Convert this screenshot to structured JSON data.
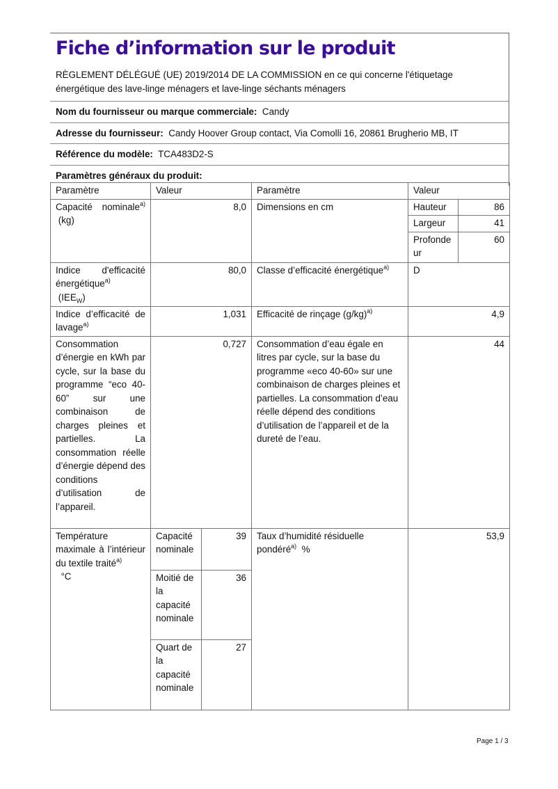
{
  "title": "Fiche d’information sur le produit",
  "regulation": "RÈGLEMENT DÉLÉGUÉ (UE) 2019/2014 DE LA COMMISSION en ce qui concerne l'étiquetage énergétique des lave-linge ménagers et lave-linge séchants ménagers",
  "supplier": {
    "label": "Nom du fournisseur ou marque commerciale:",
    "value": "Candy"
  },
  "address": {
    "label": "Adresse du fournisseur:",
    "value": "Candy Hoover Group contact, Via Comolli 16, 20861 Brugherio MB, IT"
  },
  "model": {
    "label": "Référence du modèle:",
    "value": "TCA483D2-S"
  },
  "general": "Paramètres généraux du produit:",
  "table": {
    "h_param": "Paramètre",
    "h_value": "Valeur",
    "h_param2": "Paramètre",
    "h_value2": "Valeur",
    "sup": "a)",
    "capacity": {
      "label": "Capacité nominale",
      "unit": "(kg)",
      "value": "8,0"
    },
    "dimensions": {
      "label": "Dimensions en cm",
      "height_label": "Hauteur",
      "height": "86",
      "width_label": "Largeur",
      "width": "41",
      "depth_label": "Profondeur",
      "depth": "60"
    },
    "eei": {
      "label": "Indice d'efficacité énergétique",
      "abbr": "(IEE",
      "abbr_sub": "W",
      "abbr_close": ")",
      "value": "80,0"
    },
    "energy_class": {
      "label": "Classe d’efficacité énergétique",
      "value": "D"
    },
    "washing": {
      "label": "Indice d’efficacité de lavage",
      "value": "1,031"
    },
    "rinsing": {
      "label": "Efficacité de rinçage (g/kg)",
      "value": "4,9"
    },
    "energy": {
      "label": "Consommation d’énergie en kWh par cycle, sur la base du programme “eco 40-60” sur une combinaison de charges pleines et partielles. La consommation réelle d’énergie dépend des conditions d’utilisation de l’appareil.",
      "value": "0,727"
    },
    "water": {
      "label": "Consommation d’eau égale en litres par cycle, sur la base du programme «eco 40-60» sur une combinaison de charges pleines et partielles. La consommation d’eau réelle dépend des conditions d’utilisation de l’appareil et de la dureté de l’eau.",
      "value": "44"
    },
    "temperature": {
      "label": "Température maximale à l’intérieur du textile traité",
      "unit": "°C",
      "rows": [
        {
          "label": "Capacité nominale",
          "value": "39"
        },
        {
          "label": "Moitié de la capacité nominale",
          "value": "36"
        },
        {
          "label": "Quart de la capacité nominale",
          "value": "27"
        }
      ]
    },
    "humidity": {
      "label": "Taux d’humidité résiduelle pondéré",
      "unit": "%",
      "value": "53,9"
    }
  },
  "footer": "Page 1 / 3"
}
